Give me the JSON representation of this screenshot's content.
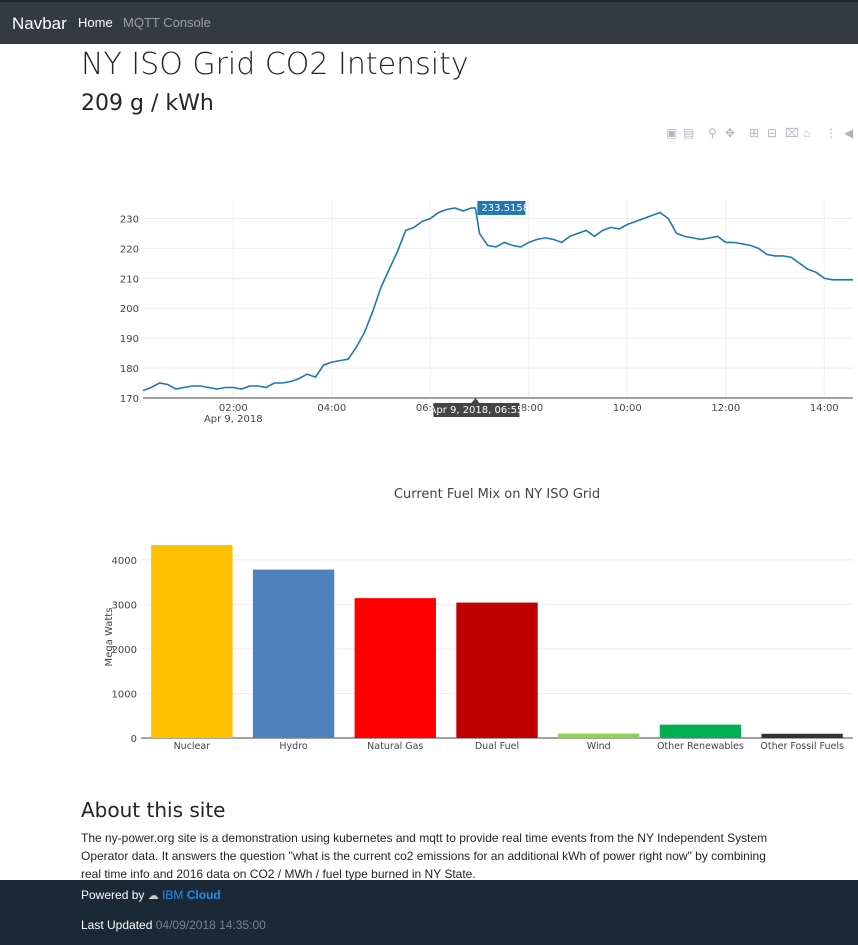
{
  "navbar": {
    "brand": "Navbar",
    "links": [
      "Home",
      "MQTT Console"
    ]
  },
  "header": {
    "title": "NY ISO Grid CO2 Intensity",
    "current_value": "209 g / kWh"
  },
  "modebar_icons": [
    "camera-icon",
    "save-icon",
    "zoom-icon",
    "pan-icon",
    "zoom-in-icon",
    "zoom-out-icon",
    "autoscale-icon",
    "home-icon",
    "spike-lines-icon",
    "hover-compare-icon"
  ],
  "chart_data": [
    {
      "type": "line",
      "x_ticks": [
        "02:00",
        "04:00",
        "06:00",
        "08:00",
        "10:00",
        "12:00",
        "14:00"
      ],
      "x_subtitle": "Apr 9, 2018",
      "y_ticks": [
        170,
        180,
        190,
        200,
        210,
        220,
        230
      ],
      "ylim": [
        170,
        233.5
      ],
      "xlim": [
        "00:10",
        "14:35"
      ],
      "grid": true,
      "series": [
        {
          "color": "#1f77b4",
          "x": [
            "00:10",
            "00:20",
            "00:30",
            "00:40",
            "00:50",
            "01:00",
            "01:10",
            "01:20",
            "01:30",
            "01:40",
            "01:50",
            "02:00",
            "02:10",
            "02:20",
            "02:30",
            "02:40",
            "02:50",
            "03:00",
            "03:10",
            "03:20",
            "03:30",
            "03:40",
            "03:50",
            "04:00",
            "04:10",
            "04:20",
            "04:30",
            "04:40",
            "04:50",
            "05:00",
            "05:10",
            "05:20",
            "05:30",
            "05:40",
            "05:50",
            "06:00",
            "06:10",
            "06:20",
            "06:30",
            "06:40",
            "06:50",
            "06:55",
            "07:00",
            "07:10",
            "07:20",
            "07:30",
            "07:40",
            "07:50",
            "08:00",
            "08:10",
            "08:20",
            "08:30",
            "08:40",
            "08:50",
            "09:00",
            "09:10",
            "09:20",
            "09:30",
            "09:40",
            "09:50",
            "10:00",
            "10:10",
            "10:20",
            "10:30",
            "10:40",
            "10:50",
            "11:00",
            "11:10",
            "11:20",
            "11:30",
            "11:40",
            "11:50",
            "12:00",
            "12:10",
            "12:20",
            "12:30",
            "12:40",
            "12:50",
            "13:00",
            "13:10",
            "13:20",
            "13:30",
            "13:40",
            "13:50",
            "14:00",
            "14:10",
            "14:20",
            "14:35"
          ],
          "y": [
            172.5,
            173.5,
            175,
            174.5,
            173,
            173.5,
            174,
            174,
            173.5,
            173,
            173.5,
            173.5,
            173,
            174,
            174,
            173.5,
            175,
            175,
            175.5,
            176.5,
            178,
            177,
            181,
            182,
            182.5,
            183,
            187,
            192,
            199,
            207,
            213,
            219,
            226,
            227,
            229,
            230,
            232,
            233,
            233.5,
            232.5,
            233.5,
            233.5,
            225,
            221,
            220.5,
            222,
            221,
            220.5,
            222,
            223,
            223.5,
            223,
            222,
            224,
            225,
            226,
            224,
            226,
            227,
            226.5,
            228,
            229,
            230,
            231,
            232,
            230,
            225,
            224,
            223.5,
            223,
            223.5,
            224,
            222,
            222,
            221.5,
            221,
            220,
            218,
            217.5,
            217.5,
            217,
            215,
            213,
            212,
            210,
            209.5,
            209.5,
            209.5
          ]
        }
      ],
      "hover": {
        "value_label": "233.5158",
        "x_label": "Apr 9, 2018, 06:55"
      }
    },
    {
      "type": "bar",
      "title": "Current Fuel Mix on NY ISO Grid",
      "ylabel": "Mega Watts",
      "ylim": [
        0,
        4400
      ],
      "y_ticks": [
        0,
        1000,
        2000,
        3000,
        4000
      ],
      "categories": [
        "Nuclear",
        "Hydro",
        "Natural Gas",
        "Dual Fuel",
        "Wind",
        "Other Renewables",
        "Other Fossil Fuels"
      ],
      "values": [
        4330,
        3780,
        3140,
        3040,
        100,
        300,
        95
      ],
      "colors": [
        "#ffc000",
        "#4f81bd",
        "#ff0000",
        "#c00000",
        "#92d050",
        "#00b050",
        "#333333"
      ]
    }
  ],
  "about": {
    "heading": "About this site",
    "text": "The ny-power.org site is a demonstration using kubernetes and mqtt to provide real time events from the NY Independent System Operator data. It answers the question \"what is the current co2 emissions for an additional kWh of power right now\" by combining real time info and 2016 data on CO2 / MWh / fuel type burned in NY State."
  },
  "footer": {
    "powered_by": "Powered by",
    "ibm": "IBM",
    "cloud": "Cloud",
    "last_updated_label": "Last Updated",
    "last_updated_value": "04/09/2018 14:35:00"
  }
}
